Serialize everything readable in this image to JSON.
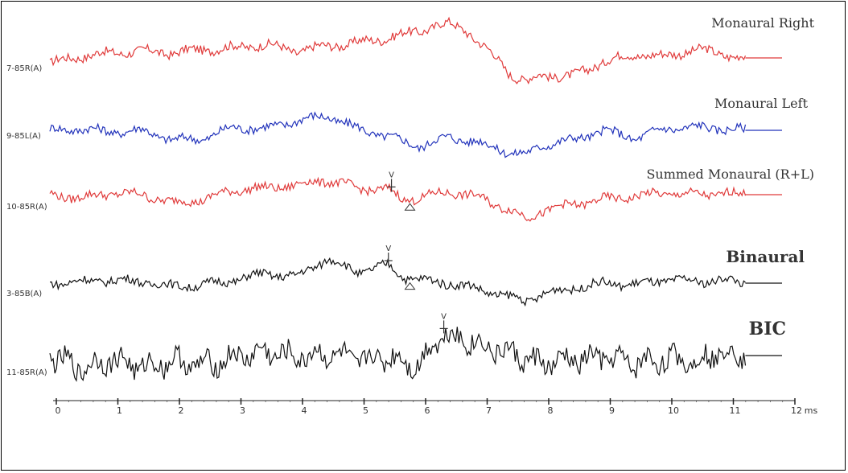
{
  "chart_data": {
    "type": "line",
    "x_unit": "ms",
    "xlim": [
      0,
      12
    ],
    "x_ticks": [
      "0",
      "1",
      "2",
      "3",
      "4",
      "5",
      "6",
      "7",
      "8",
      "9",
      "10",
      "11",
      "12"
    ],
    "series": [
      {
        "name": "Monaural Right",
        "label": "7-85R(A)",
        "color": "#e03a3a",
        "title_size": "large",
        "x": [
          0,
          0.5,
          1,
          1.5,
          2,
          2.5,
          3,
          3.5,
          4,
          4.5,
          5,
          5.5,
          6,
          6.25,
          6.5,
          6.75,
          7,
          7.25,
          7.5,
          7.75,
          8,
          8.5,
          9,
          9.5,
          10,
          10.5,
          11,
          11.3
        ],
        "y": [
          -0.15,
          0.05,
          0.15,
          0.2,
          0.15,
          0.25,
          0.3,
          0.4,
          0.2,
          0.35,
          0.45,
          0.6,
          0.8,
          0.95,
          1.0,
          0.85,
          0.4,
          0.0,
          -0.5,
          -0.7,
          -0.5,
          -0.55,
          -0.1,
          0.1,
          0.05,
          0.25,
          0.1,
          0.0
        ]
      },
      {
        "name": "Monaural Left",
        "label": "9-85L(A)",
        "color": "#2233bb",
        "title_size": "large",
        "x": [
          0,
          0.5,
          1,
          1.5,
          2,
          2.5,
          3,
          3.5,
          4,
          4.5,
          5,
          5.5,
          6,
          6.5,
          7,
          7.5,
          7.75,
          8,
          8.5,
          9,
          9.5,
          10,
          10.5,
          11,
          11.3
        ],
        "y": [
          0.0,
          0.05,
          -0.05,
          0.0,
          -0.3,
          -0.25,
          0.1,
          0.05,
          0.3,
          0.45,
          0.05,
          -0.2,
          -0.5,
          -0.2,
          -0.4,
          -0.7,
          -0.75,
          -0.45,
          -0.3,
          0.0,
          -0.25,
          0.05,
          0.1,
          0.05,
          0.0
        ]
      },
      {
        "name": "Summed Monaural (R+L)",
        "label": "10-85R(A)",
        "color": "#e03a3a",
        "title_size": "large",
        "x": [
          0,
          0.5,
          1,
          1.5,
          2,
          2.5,
          3,
          3.5,
          4,
          4.5,
          5,
          5.5,
          5.75,
          6,
          6.5,
          7,
          7.5,
          7.75,
          8,
          8.5,
          9,
          9.5,
          10,
          10.5,
          11,
          11.3
        ],
        "y": [
          0.0,
          -0.1,
          0.05,
          0.0,
          -0.25,
          -0.15,
          0.15,
          0.2,
          0.3,
          0.45,
          0.2,
          0.15,
          -0.15,
          -0.1,
          0.1,
          -0.1,
          -0.5,
          -0.75,
          -0.5,
          -0.3,
          -0.15,
          -0.05,
          0.05,
          0.0,
          0.05,
          0.0
        ]
      },
      {
        "name": "Binaural",
        "label": "3-85B(A)",
        "color": "#111111",
        "title_size": "larger",
        "x": [
          0,
          0.5,
          1,
          1.5,
          2,
          2.5,
          3,
          3.5,
          4,
          4.5,
          5,
          5.5,
          5.75,
          6,
          6.5,
          7,
          7.5,
          7.75,
          8,
          8.5,
          9,
          9.5,
          10,
          10.5,
          11,
          11.3
        ],
        "y": [
          0.0,
          0.05,
          0.1,
          0.05,
          -0.1,
          -0.05,
          0.1,
          0.3,
          0.2,
          0.75,
          0.35,
          0.55,
          0.2,
          0.1,
          0.0,
          -0.2,
          -0.45,
          -0.55,
          -0.35,
          -0.15,
          0.0,
          -0.05,
          0.1,
          0.05,
          0.1,
          0.0
        ]
      },
      {
        "name": "BIC",
        "label": "11-85R(A)",
        "color": "#111111",
        "title_size": "largest",
        "x": [
          0,
          0.5,
          1,
          1.5,
          2,
          2.5,
          3,
          3.5,
          4,
          4.5,
          5,
          5.5,
          6,
          6.25,
          6.4,
          6.6,
          6.8,
          7,
          7.5,
          8,
          8.5,
          9,
          9.5,
          10,
          10.5,
          11,
          11.3
        ],
        "y": [
          0.0,
          -0.4,
          -0.1,
          -0.35,
          -0.15,
          -0.3,
          -0.05,
          0.1,
          -0.05,
          0.05,
          -0.15,
          -0.05,
          -0.3,
          0.4,
          0.65,
          0.55,
          0.45,
          0.3,
          0.05,
          -0.25,
          -0.15,
          -0.05,
          -0.25,
          -0.1,
          -0.15,
          0.15,
          0.0
        ]
      }
    ],
    "peak_marks": [
      {
        "series": "Summed Monaural (R+L)",
        "label": "V",
        "x": 5.55
      },
      {
        "series": "Binaural",
        "label": "V",
        "x": 5.5
      },
      {
        "series": "BIC",
        "label": "V",
        "x": 6.4
      }
    ],
    "trough_marks": [
      {
        "series": "Summed Monaural (R+L)",
        "x": 5.85
      },
      {
        "series": "Binaural",
        "x": 5.85
      }
    ]
  }
}
